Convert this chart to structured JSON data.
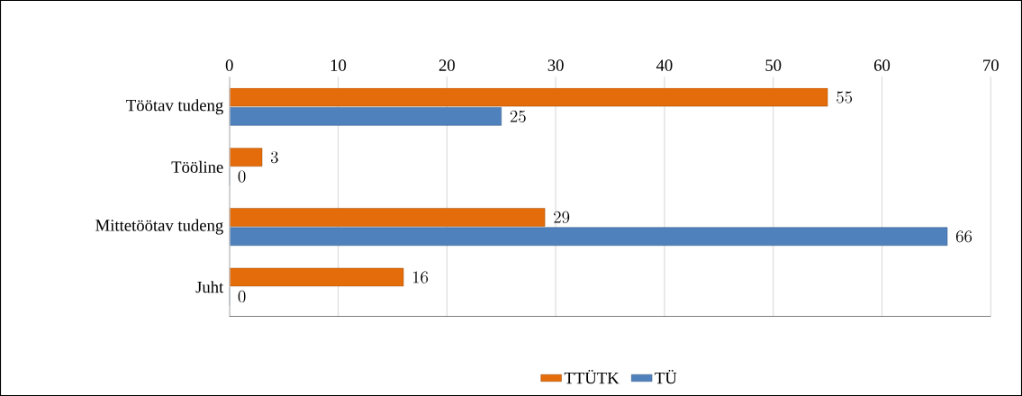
{
  "chart_data": {
    "type": "bar",
    "orientation": "horizontal",
    "categories": [
      "Töötav tudeng",
      "Tööline",
      "Mittetöötav tudeng",
      "Juht"
    ],
    "series": [
      {
        "name": "TTÜTK",
        "color": "#e46c0a",
        "values": [
          55,
          3,
          29,
          16
        ]
      },
      {
        "name": "TÜ",
        "color": "#4f81bd",
        "values": [
          25,
          0,
          66,
          0
        ]
      }
    ],
    "xlim": [
      0,
      70
    ],
    "xticks": [
      0,
      10,
      20,
      30,
      40,
      50,
      60,
      70
    ],
    "grid": "x",
    "legend": "bottom",
    "data_labels": true
  }
}
